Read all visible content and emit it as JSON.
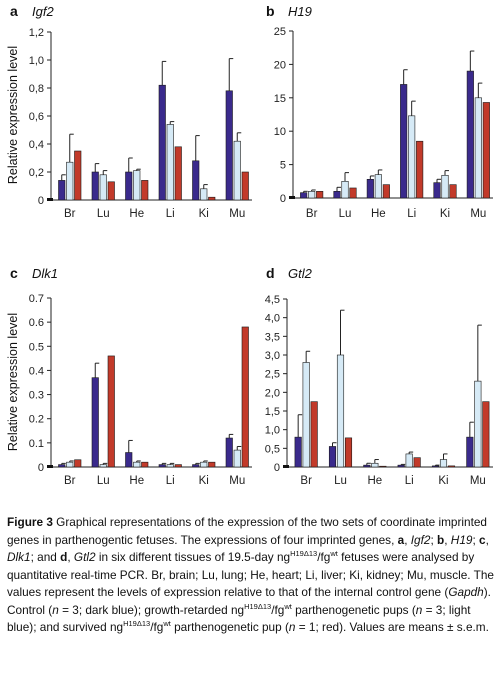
{
  "colors": {
    "control": "#3a2a8c",
    "growth_retarded": "#d6eaf6",
    "survived": "#c23a2a",
    "axis": "#222222",
    "error_bar": "#222222"
  },
  "y_axis_label": "Relative expression level",
  "chart_data": [
    {
      "panel": "a",
      "type": "bar",
      "title": "Igf2",
      "ylabel": "Relative expression level",
      "categories": [
        "Br",
        "Lu",
        "He",
        "Li",
        "Ki",
        "Mu"
      ],
      "ylim": [
        0,
        1.2
      ],
      "yticks": [
        "0",
        "0,2",
        "0,4",
        "0,6",
        "0,8",
        "1,0",
        "1,2"
      ],
      "ytick_values": [
        0,
        0.2,
        0.4,
        0.6,
        0.8,
        1.0,
        1.2
      ],
      "series": [
        {
          "values": [
            0.14,
            0.2,
            0.2,
            0.82,
            0.28,
            0.78
          ],
          "errors": [
            0.04,
            0.06,
            0.1,
            0.17,
            0.18,
            0.23
          ]
        },
        {
          "values": [
            0.27,
            0.18,
            0.21,
            0.54,
            0.08,
            0.42
          ],
          "errors": [
            0.2,
            0.03,
            0.01,
            0.02,
            0.03,
            0.06
          ]
        },
        {
          "values": [
            0.35,
            0.13,
            0.14,
            0.38,
            0.02,
            0.2
          ],
          "errors": [
            0,
            0,
            0,
            0,
            0,
            0
          ]
        }
      ]
    },
    {
      "panel": "b",
      "type": "bar",
      "title": "H19",
      "ylabel": "",
      "categories": [
        "Br",
        "Lu",
        "He",
        "Li",
        "Ki",
        "Mu"
      ],
      "ylim": [
        0,
        25
      ],
      "yticks": [
        "0",
        "5",
        "10",
        "15",
        "20",
        "25"
      ],
      "ytick_values": [
        0,
        5,
        10,
        15,
        20,
        25
      ],
      "series": [
        {
          "values": [
            0.8,
            1.0,
            2.8,
            17.0,
            2.3,
            19.0
          ],
          "errors": [
            0.2,
            0.6,
            0.5,
            2.2,
            0.5,
            3.0
          ]
        },
        {
          "values": [
            1.0,
            2.5,
            3.5,
            12.3,
            3.4,
            15.0
          ],
          "errors": [
            0.2,
            1.3,
            0.7,
            2.2,
            0.7,
            2.2
          ]
        },
        {
          "values": [
            1.0,
            1.5,
            2.0,
            8.5,
            2.0,
            14.3
          ],
          "errors": [
            0,
            0,
            0,
            0,
            0,
            0
          ]
        }
      ]
    },
    {
      "panel": "c",
      "type": "bar",
      "title": "Dlk1",
      "ylabel": "Relative expression level",
      "categories": [
        "Br",
        "Lu",
        "He",
        "Li",
        "Ki",
        "Mu"
      ],
      "ylim": [
        0,
        0.7
      ],
      "yticks": [
        "0",
        "0.1",
        "0.2",
        "0.3",
        "0.4",
        "0.5",
        "0.6",
        "0.7"
      ],
      "ytick_values": [
        0,
        0.1,
        0.2,
        0.3,
        0.4,
        0.5,
        0.6,
        0.7
      ],
      "series": [
        {
          "values": [
            0.01,
            0.37,
            0.06,
            0.01,
            0.01,
            0.12
          ],
          "errors": [
            0.005,
            0.06,
            0.05,
            0.005,
            0.005,
            0.015
          ]
        },
        {
          "values": [
            0.02,
            0.01,
            0.02,
            0.01,
            0.02,
            0.07
          ],
          "errors": [
            0.005,
            0.005,
            0.005,
            0.005,
            0.005,
            0.015
          ]
        },
        {
          "values": [
            0.03,
            0.46,
            0.02,
            0.01,
            0.02,
            0.58
          ],
          "errors": [
            0,
            0,
            0,
            0,
            0,
            0
          ]
        }
      ]
    },
    {
      "panel": "d",
      "type": "bar",
      "title": "Gtl2",
      "ylabel": "",
      "categories": [
        "Br",
        "Lu",
        "He",
        "Li",
        "Ki",
        "Mu"
      ],
      "ylim": [
        0,
        4.5
      ],
      "yticks": [
        "0",
        "0,5",
        "1,0",
        "1,5",
        "2,0",
        "2,5",
        "3,0",
        "3,5",
        "4,0",
        "4,5"
      ],
      "ytick_values": [
        0,
        0.5,
        1.0,
        1.5,
        2.0,
        2.5,
        3.0,
        3.5,
        4.0,
        4.5
      ],
      "series": [
        {
          "values": [
            0.8,
            0.55,
            0.05,
            0.05,
            0.03,
            0.8
          ],
          "errors": [
            0.6,
            0.1,
            0.05,
            0.02,
            0.02,
            0.4
          ]
        },
        {
          "values": [
            2.8,
            3.0,
            0.1,
            0.35,
            0.2,
            2.3
          ],
          "errors": [
            0.3,
            1.2,
            0.1,
            0.05,
            0.15,
            1.5
          ]
        },
        {
          "values": [
            1.75,
            0.78,
            0.02,
            0.25,
            0.03,
            1.75
          ],
          "errors": [
            0,
            0,
            0,
            0,
            0,
            0
          ]
        }
      ]
    }
  ],
  "caption": {
    "label": "Figure 3",
    "sentence1": " Graphical representations of the expression of the two sets of coordinate imprinted genes in parthenogentic fetuses. The expressions of four imprinted genes, ",
    "a_letter": "a",
    "a_gene": "Igf2",
    "b_letter": "b",
    "b_gene": "H19",
    "c_letter": "c",
    "c_gene": "Dlk1",
    "and_text": "; and ",
    "d_letter": "d",
    "d_gene": "Gtl2",
    "tissues_text": " in six different tissues of 19.5-day ng",
    "genotype_sup": "H19Δ13",
    "genotype_mid": "/fg",
    "wt_sup": "wt",
    "fetuses_text": " fetuses were analysed by quantitative real-time PCR. Br, brain; Lu, lung; He, heart; Li, liver; Ki, kidney; Mu, muscle. The values represent the levels of expression relative to that of the internal control gene (",
    "control_gene": "Gapdh",
    "control_text": "). Control (",
    "n_letter": "n",
    "n3_dark": " = 3; dark blue); growth-retarded ng",
    "pups_text": " parthenogenetic pups (",
    "n3_light": " = 3; light blue); and survived ng",
    "survived_pup": " parthenogenetic pup (",
    "n1_red": " = 1; red). Values are means ± s.e.m."
  }
}
